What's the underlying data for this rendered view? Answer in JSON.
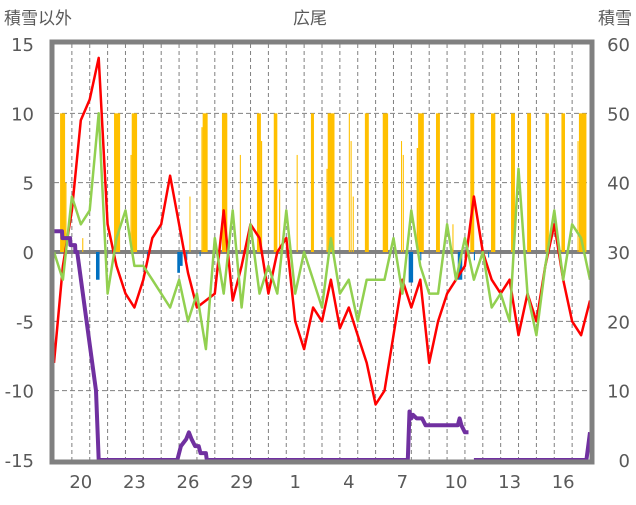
{
  "chart_data": {
    "type": "line",
    "title": "広尾",
    "ylabel_left": "積雪以外",
    "ylabel_right": "積雪",
    "ylim_left": [
      -15,
      15
    ],
    "ylim_right": [
      0,
      60
    ],
    "yticks_left": [
      "15",
      "10",
      "5",
      "0",
      "-5",
      "-10",
      "-15"
    ],
    "yticks_left_values": [
      15,
      10,
      5,
      0,
      -5,
      -10,
      -15
    ],
    "yticks_right": [
      "60",
      "50",
      "40",
      "30",
      "20",
      "10",
      "0"
    ],
    "yticks_right_values": [
      60,
      50,
      40,
      30,
      20,
      10,
      0
    ],
    "xlim_days": [
      0,
      30
    ],
    "xticks": [
      {
        "day": 1.5,
        "label": "20"
      },
      {
        "day": 4.5,
        "label": "23"
      },
      {
        "day": 7.5,
        "label": "26"
      },
      {
        "day": 10.5,
        "label": "29"
      },
      {
        "day": 13.5,
        "label": "1"
      },
      {
        "day": 16.5,
        "label": "4"
      },
      {
        "day": 19.5,
        "label": "7"
      },
      {
        "day": 22.5,
        "label": "10"
      },
      {
        "day": 25.5,
        "label": "13"
      },
      {
        "day": 28.5,
        "label": "16"
      }
    ],
    "grid": true,
    "colors": {
      "red": "#FF0000",
      "green": "#92D050",
      "purple": "#7030A0",
      "orange": "#FFC000",
      "blue": "#0070C0",
      "axis": "#808080"
    },
    "series": [
      {
        "key": "red",
        "axis": "left",
        "kind": "line",
        "step": 0.5,
        "values": [
          -8,
          -1,
          3,
          9.5,
          11,
          14,
          2,
          -1,
          -3,
          -4,
          -2,
          1,
          2,
          5.5,
          2,
          -1.5,
          -4,
          -3.5,
          -3,
          3,
          -3.5,
          -1,
          2,
          1,
          -3,
          0,
          1,
          -5,
          -7,
          -4,
          -5,
          -2,
          -5.5,
          -4,
          -6,
          -8,
          -11,
          -10,
          -6,
          -2,
          -4,
          -2,
          -8,
          -5,
          -3,
          -2,
          -1,
          4,
          0,
          -2,
          -3,
          -2,
          -6,
          -3,
          -5,
          -1,
          2,
          -2,
          -5,
          -6,
          -3.5
        ]
      },
      {
        "key": "green",
        "axis": "left",
        "kind": "line",
        "step": 0.5,
        "values": [
          0,
          -2,
          4,
          2,
          3,
          10,
          -3,
          1,
          3,
          -1,
          -1,
          -2,
          -3,
          -4,
          -2,
          -5,
          -3,
          -7,
          1,
          -3,
          3,
          -4,
          2,
          -3,
          -1,
          -3,
          3,
          -3,
          0,
          -2,
          -4,
          1,
          -3,
          -2,
          -5,
          -2,
          -2,
          -2,
          1,
          -3,
          3,
          -1,
          -3,
          -3,
          2,
          -2,
          1,
          -2,
          0,
          -4,
          -3,
          -5,
          6,
          -3,
          -6,
          -1,
          3,
          -2,
          2,
          1,
          -2
        ]
      },
      {
        "key": "orange",
        "axis": "left",
        "kind": "bars",
        "bars": [
          [
            0.34,
            0.62,
            10
          ],
          [
            0.62,
            0.7,
            5
          ],
          [
            1.58,
            1.64,
            1
          ],
          [
            3.36,
            3.7,
            10
          ],
          [
            4.28,
            4.35,
            7
          ],
          [
            4.35,
            4.65,
            10
          ],
          [
            7.58,
            7.64,
            4
          ],
          [
            8.25,
            8.32,
            9
          ],
          [
            8.32,
            8.6,
            10
          ],
          [
            9.4,
            9.7,
            10
          ],
          [
            10.4,
            10.46,
            7
          ],
          [
            11.36,
            11.58,
            10
          ],
          [
            11.58,
            11.65,
            8
          ],
          [
            12.3,
            12.5,
            10
          ],
          [
            12.6,
            12.66,
            4.5
          ],
          [
            13.58,
            13.64,
            7
          ],
          [
            14.38,
            14.55,
            10
          ],
          [
            15.25,
            15.32,
            6
          ],
          [
            15.32,
            15.7,
            10
          ],
          [
            16.5,
            16.56,
            10
          ],
          [
            16.6,
            16.66,
            8
          ],
          [
            16.72,
            16.78,
            4
          ],
          [
            17.4,
            17.62,
            10
          ],
          [
            18.4,
            18.7,
            10
          ],
          [
            19.42,
            19.48,
            8
          ],
          [
            19.52,
            19.58,
            7
          ],
          [
            20.3,
            20.38,
            7.5
          ],
          [
            20.38,
            20.7,
            10
          ],
          [
            21.38,
            21.6,
            10
          ],
          [
            22.3,
            22.36,
            2
          ],
          [
            23.3,
            23.52,
            10
          ],
          [
            24.46,
            24.7,
            10
          ],
          [
            25.58,
            25.8,
            10
          ],
          [
            26.48,
            26.7,
            10
          ],
          [
            27.5,
            27.7,
            10
          ],
          [
            28.4,
            28.6,
            10
          ],
          [
            29.3,
            29.36,
            8
          ],
          [
            29.38,
            29.8,
            10
          ]
        ]
      },
      {
        "key": "blue",
        "axis": "left",
        "kind": "bars",
        "bars": [
          [
            2.35,
            2.55,
            -2
          ],
          [
            5.2,
            5.28,
            -0.5
          ],
          [
            6.9,
            7.05,
            -1.5
          ],
          [
            7.05,
            7.2,
            -1
          ],
          [
            7.4,
            7.46,
            -0.6
          ],
          [
            8.15,
            8.2,
            -0.3
          ],
          [
            19.85,
            20.1,
            -2.2
          ],
          [
            20.5,
            20.56,
            -0.6
          ],
          [
            22.6,
            22.85,
            -2
          ],
          [
            23.5,
            23.56,
            -0.6
          ],
          [
            24.3,
            24.35,
            -0.4
          ]
        ]
      },
      {
        "key": "purple",
        "axis": "right",
        "kind": "line",
        "segments": [
          [
            [
              0,
              33
            ],
            [
              0.45,
              33
            ],
            [
              0.47,
              32
            ],
            [
              0.9,
              32
            ],
            [
              0.92,
              31
            ],
            [
              1.18,
              31
            ],
            [
              1.2,
              30
            ],
            [
              1.3,
              30
            ],
            [
              2.35,
              10
            ],
            [
              2.5,
              0
            ],
            [
              6.9,
              0
            ],
            [
              7.1,
              2
            ],
            [
              7.4,
              3
            ],
            [
              7.55,
              4
            ],
            [
              7.7,
              3
            ],
            [
              7.9,
              2
            ],
            [
              8.1,
              2
            ],
            [
              8.2,
              1
            ],
            [
              8.5,
              1
            ],
            [
              8.55,
              0
            ],
            [
              19.8,
              0
            ],
            [
              19.9,
              7
            ],
            [
              20.0,
              6
            ],
            [
              20.1,
              6.5
            ],
            [
              20.3,
              6
            ],
            [
              20.6,
              6
            ],
            [
              20.8,
              5
            ],
            [
              22.6,
              5
            ],
            [
              22.7,
              6
            ],
            [
              22.8,
              5
            ],
            [
              23.0,
              4
            ],
            [
              23.2,
              4
            ]
          ],
          [
            [
              23.5,
              0
            ],
            [
              29.8,
              0
            ],
            [
              30,
              4
            ]
          ]
        ]
      }
    ]
  }
}
